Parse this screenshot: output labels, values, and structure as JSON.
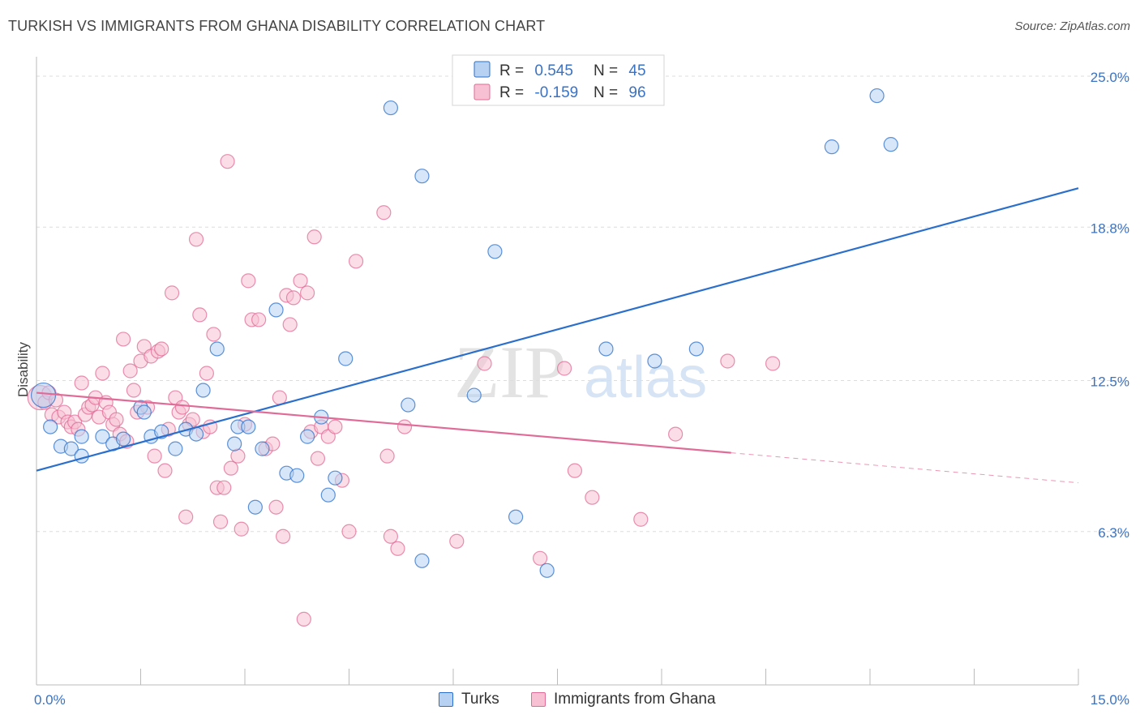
{
  "header": {
    "title": "TURKISH VS IMMIGRANTS FROM GHANA DISABILITY CORRELATION CHART",
    "source": "Source: ZipAtlas.com"
  },
  "watermark": {
    "text_zip": "ZIP",
    "text_atlas": "atlas"
  },
  "colors": {
    "turks": "#2a6fcb",
    "turks_fill": "#b7d1f2",
    "ghana": "#e06b96",
    "ghana_fill": "#f7c1d3",
    "value_text": "#3a72c4",
    "grid": "#dddddd",
    "axis": "#bbbbbb"
  },
  "legend_top": {
    "rows": [
      {
        "r_label": "R = ",
        "r_value": "0.545",
        "n_label": "N = ",
        "n_value": "45"
      },
      {
        "r_label": "R = ",
        "r_value": "-0.159",
        "n_label": "N = ",
        "n_value": "96"
      }
    ]
  },
  "chart_data": {
    "type": "scatter",
    "title": "TURKISH VS IMMIGRANTS FROM GHANA DISABILITY CORRELATION CHART",
    "xlabel": "",
    "ylabel": "Disability",
    "xlim": [
      0,
      15
    ],
    "ylim": [
      0,
      25.8
    ],
    "x_tick_labels": [
      "0.0%",
      "15.0%"
    ],
    "y_ticks": [
      6.3,
      12.5,
      18.8,
      25.0
    ],
    "y_tick_labels": [
      "6.3%",
      "12.5%",
      "18.8%",
      "25.0%"
    ],
    "grid": true,
    "legend": [
      "Turks",
      "Immigrants from Ghana"
    ],
    "series": [
      {
        "name": "Turks",
        "r": 0.545,
        "n": 45,
        "trend": {
          "x0": 0.0,
          "y0": 8.8,
          "x1": 15.0,
          "y1": 20.4,
          "dash_from": null
        },
        "points": [
          [
            0.1,
            11.9
          ],
          [
            0.2,
            10.6
          ],
          [
            0.35,
            9.8
          ],
          [
            0.5,
            9.7
          ],
          [
            0.65,
            9.4
          ],
          [
            0.65,
            10.2
          ],
          [
            0.95,
            10.2
          ],
          [
            1.1,
            9.9
          ],
          [
            1.25,
            10.1
          ],
          [
            1.5,
            11.4
          ],
          [
            1.55,
            11.2
          ],
          [
            1.65,
            10.2
          ],
          [
            1.8,
            10.4
          ],
          [
            2.0,
            9.7
          ],
          [
            2.15,
            10.5
          ],
          [
            2.3,
            10.3
          ],
          [
            2.4,
            12.1
          ],
          [
            2.6,
            13.8
          ],
          [
            2.85,
            9.9
          ],
          [
            2.9,
            10.6
          ],
          [
            3.05,
            10.6
          ],
          [
            3.15,
            7.3
          ],
          [
            3.25,
            9.7
          ],
          [
            3.45,
            15.4
          ],
          [
            3.6,
            8.7
          ],
          [
            3.75,
            8.6
          ],
          [
            3.9,
            10.2
          ],
          [
            4.1,
            11.0
          ],
          [
            4.2,
            7.8
          ],
          [
            4.3,
            8.5
          ],
          [
            4.45,
            13.4
          ],
          [
            5.1,
            23.7
          ],
          [
            5.35,
            11.5
          ],
          [
            5.55,
            5.1
          ],
          [
            5.55,
            20.9
          ],
          [
            6.3,
            11.9
          ],
          [
            6.6,
            17.8
          ],
          [
            6.9,
            6.9
          ],
          [
            7.35,
            4.7
          ],
          [
            8.2,
            13.8
          ],
          [
            8.9,
            13.3
          ],
          [
            9.5,
            13.8
          ],
          [
            11.45,
            22.1
          ],
          [
            12.1,
            24.2
          ],
          [
            12.3,
            22.2
          ]
        ]
      },
      {
        "name": "Immigrants from Ghana",
        "r": -0.159,
        "n": 96,
        "trend": {
          "x0": 0.0,
          "y0": 12.0,
          "x1": 15.0,
          "y1": 8.3,
          "dash_from": 10.0
        },
        "points": [
          [
            0.05,
            11.8
          ],
          [
            0.12,
            11.6
          ],
          [
            0.18,
            12.0
          ],
          [
            0.22,
            11.1
          ],
          [
            0.28,
            11.7
          ],
          [
            0.32,
            11.0
          ],
          [
            0.4,
            11.2
          ],
          [
            0.45,
            10.8
          ],
          [
            0.5,
            10.6
          ],
          [
            0.55,
            10.8
          ],
          [
            0.6,
            10.5
          ],
          [
            0.65,
            12.4
          ],
          [
            0.7,
            11.1
          ],
          [
            0.75,
            11.4
          ],
          [
            0.8,
            11.5
          ],
          [
            0.85,
            11.8
          ],
          [
            0.9,
            11.0
          ],
          [
            0.95,
            12.8
          ],
          [
            1.0,
            11.6
          ],
          [
            1.05,
            11.2
          ],
          [
            1.1,
            10.7
          ],
          [
            1.15,
            10.9
          ],
          [
            1.2,
            10.3
          ],
          [
            1.25,
            14.2
          ],
          [
            1.3,
            10.0
          ],
          [
            1.35,
            12.9
          ],
          [
            1.4,
            12.1
          ],
          [
            1.45,
            11.2
          ],
          [
            1.5,
            13.3
          ],
          [
            1.55,
            13.9
          ],
          [
            1.6,
            11.4
          ],
          [
            1.65,
            13.5
          ],
          [
            1.7,
            9.4
          ],
          [
            1.75,
            13.7
          ],
          [
            1.8,
            13.8
          ],
          [
            1.85,
            8.8
          ],
          [
            1.9,
            10.5
          ],
          [
            1.95,
            16.1
          ],
          [
            2.0,
            11.8
          ],
          [
            2.05,
            11.2
          ],
          [
            2.1,
            11.4
          ],
          [
            2.15,
            6.9
          ],
          [
            2.2,
            10.7
          ],
          [
            2.25,
            10.9
          ],
          [
            2.3,
            18.3
          ],
          [
            2.35,
            15.2
          ],
          [
            2.4,
            10.4
          ],
          [
            2.45,
            12.8
          ],
          [
            2.5,
            10.6
          ],
          [
            2.55,
            14.4
          ],
          [
            2.6,
            8.1
          ],
          [
            2.65,
            6.7
          ],
          [
            2.7,
            8.1
          ],
          [
            2.75,
            21.5
          ],
          [
            2.8,
            8.9
          ],
          [
            2.9,
            9.4
          ],
          [
            2.95,
            6.4
          ],
          [
            3.0,
            10.7
          ],
          [
            3.05,
            16.6
          ],
          [
            3.1,
            15.0
          ],
          [
            3.2,
            15.0
          ],
          [
            3.3,
            9.7
          ],
          [
            3.4,
            9.9
          ],
          [
            3.45,
            7.3
          ],
          [
            3.5,
            11.8
          ],
          [
            3.55,
            6.1
          ],
          [
            3.6,
            16.0
          ],
          [
            3.65,
            14.8
          ],
          [
            3.7,
            15.9
          ],
          [
            3.8,
            16.6
          ],
          [
            3.85,
            2.7
          ],
          [
            3.9,
            16.1
          ],
          [
            3.95,
            10.4
          ],
          [
            4.0,
            18.4
          ],
          [
            4.05,
            9.3
          ],
          [
            4.1,
            10.6
          ],
          [
            4.2,
            10.2
          ],
          [
            4.3,
            10.6
          ],
          [
            4.4,
            8.4
          ],
          [
            4.5,
            6.3
          ],
          [
            4.6,
            17.4
          ],
          [
            5.0,
            19.4
          ],
          [
            5.05,
            9.4
          ],
          [
            5.1,
            6.1
          ],
          [
            5.2,
            5.6
          ],
          [
            5.3,
            10.6
          ],
          [
            6.05,
            5.9
          ],
          [
            6.45,
            13.2
          ],
          [
            7.25,
            5.2
          ],
          [
            7.6,
            13.0
          ],
          [
            7.75,
            8.8
          ],
          [
            8.0,
            7.7
          ],
          [
            8.7,
            6.8
          ],
          [
            9.2,
            10.3
          ],
          [
            9.95,
            13.3
          ],
          [
            10.6,
            13.2
          ]
        ]
      }
    ]
  }
}
